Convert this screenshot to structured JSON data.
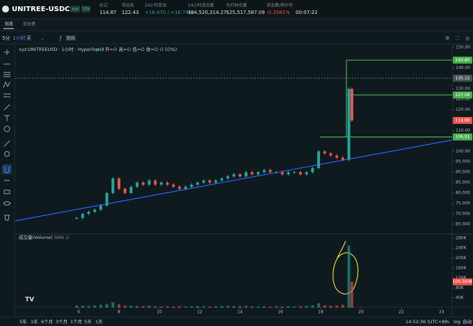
{
  "header": {
    "symbol": "UNITREE-USDC",
    "dex": "xyz",
    "leverage": "10x",
    "stats": [
      {
        "label": "标记",
        "value": "114.87"
      },
      {
        "label": "预言机",
        "value": "122.43"
      },
      {
        "label": "24小时变化",
        "value": "+16.470 / +16.74%"
      },
      {
        "label": "24小时成交量",
        "value": "$84,520,314.27"
      },
      {
        "label": "合约持仓量",
        "value": "$25,517,587.09"
      },
      {
        "label": "资金费/倒计时",
        "value": "-0.3581%",
        "countdown": "00:07:22"
      }
    ]
  },
  "tabs": [
    "图表",
    "资金费"
  ],
  "toolbar": {
    "intervals": [
      "5分",
      "1小时",
      "天"
    ],
    "indicators": "指标"
  },
  "chart_data": {
    "type": "candlestick",
    "legend": "xyz:UNITREEUSD · 1小时 · Hyperliquid",
    "ohlc": "开=∅ 高=∅ 低=∅ 收=∅ ∅ (∅%)",
    "x": [
      5.9,
      6.2,
      6.5,
      6.8,
      7.1,
      7.4,
      7.7,
      8.0,
      8.3,
      8.6,
      8.9,
      9.2,
      9.5,
      9.8,
      10.1,
      10.4,
      10.7,
      11.0,
      11.3,
      11.6,
      11.9,
      12.2,
      12.5,
      12.8,
      13.1,
      13.4,
      13.7,
      14.0,
      14.3,
      14.6,
      14.9,
      15.2,
      15.5,
      15.8,
      16.1,
      16.4,
      16.7,
      17.0,
      17.3,
      17.6,
      17.9,
      18.2,
      18.5,
      18.8,
      19.1,
      19.4,
      19.55
    ],
    "values": [
      68,
      70,
      71,
      72,
      74,
      80,
      87,
      82,
      80,
      83,
      85,
      84,
      86,
      84,
      85,
      84,
      83,
      82,
      83,
      84,
      85,
      86,
      85,
      86,
      87,
      88,
      89,
      88,
      90,
      89,
      90,
      91,
      90,
      90,
      89,
      90,
      90,
      89,
      90,
      92,
      100,
      99,
      98,
      97,
      96,
      130,
      114.86
    ],
    "up_color": "#26a69a",
    "down_color": "#ef5350",
    "xlim": [
      2.86,
      24.52
    ],
    "xticks": [
      6,
      8,
      10,
      12,
      14,
      16,
      18,
      20,
      22,
      24
    ],
    "ylim": [
      60.3,
      151.6
    ],
    "yticks": [
      {
        "value": 150,
        "label": "150.00"
      },
      {
        "value": 140,
        "label": "140.00"
      },
      {
        "value": 130,
        "label": "130.00"
      },
      {
        "value": 125,
        "label": "125.00"
      },
      {
        "value": 120,
        "label": "120.00"
      },
      {
        "value": 110,
        "label": "110.00"
      },
      {
        "value": 100,
        "label": "100.00"
      },
      {
        "value": 95,
        "label": "95.000"
      },
      {
        "value": 90,
        "label": "90.000"
      },
      {
        "value": 85,
        "label": "85.000"
      },
      {
        "value": 80,
        "label": "80.000"
      },
      {
        "value": 75,
        "label": "75.000"
      },
      {
        "value": 70,
        "label": "70.000"
      },
      {
        "value": 65,
        "label": "65.000"
      }
    ],
    "price_lines": [
      {
        "value": 143.8,
        "label": "143.80"
      },
      {
        "value": 127.08,
        "label": "127.08"
      },
      {
        "value": 106.91,
        "label": "106.91"
      }
    ],
    "line_color": "#4caf50",
    "crosshair": {
      "value": 135.12,
      "label": "135.12"
    },
    "last_price": {
      "value": 114.86,
      "label": "114.86"
    },
    "volume": {
      "title": "成交量(Volume)",
      "sma": "SMA ∅",
      "values": [
        9000,
        8000,
        7000,
        9000,
        12000,
        15000,
        22000,
        14000,
        9000,
        8000,
        7000,
        6000,
        8000,
        6000,
        5000,
        6000,
        5000,
        6000,
        5000,
        6000,
        7000,
        6000,
        5000,
        6000,
        7000,
        8000,
        7000,
        6000,
        8000,
        6000,
        5000,
        6000,
        5000,
        6000,
        5000,
        6000,
        5000,
        6000,
        7000,
        9000,
        18000,
        10000,
        8000,
        9000,
        12000,
        250000,
        104164
      ],
      "ylim": [
        0,
        294000
      ],
      "yticks": [
        {
          "value": 280000,
          "label": "280K"
        },
        {
          "value": 240000,
          "label": "240K"
        },
        {
          "value": 200000,
          "label": "200K"
        },
        {
          "value": 160000,
          "label": "160K"
        },
        {
          "value": 120000,
          "label": "120K"
        },
        {
          "value": 80000,
          "label": "80K"
        },
        {
          "value": 40000,
          "label": "40K"
        }
      ],
      "last": {
        "value": 104164,
        "label": "104.164K"
      }
    }
  },
  "footer": {
    "ranges": [
      "5年",
      "1年",
      "6个月",
      "3个月",
      "1个月",
      "5天",
      "1天"
    ],
    "time": "14:52:36 (UTC+8)",
    "options": [
      "%",
      "log",
      "自动"
    ]
  }
}
